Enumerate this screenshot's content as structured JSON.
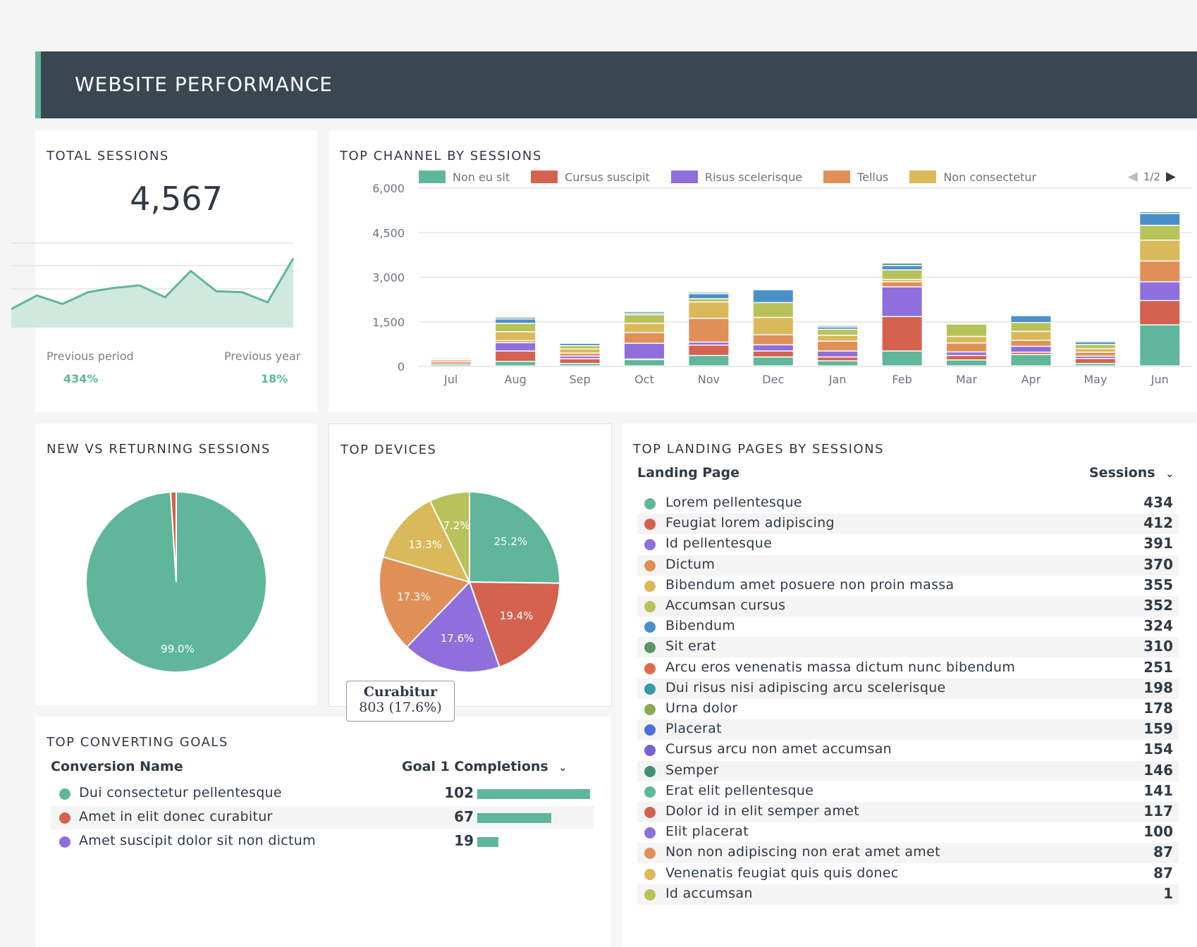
{
  "header": {
    "title": "WEBSITE PERFORMANCE"
  },
  "total_sessions": {
    "title": "TOTAL SESSIONS",
    "value": "4,567",
    "previous_period_label": "Previous period",
    "previous_period_value": "434%",
    "previous_year_label": "Previous year",
    "previous_year_value": "18%",
    "sparkline": [
      22,
      38,
      28,
      42,
      47,
      50,
      36,
      67,
      43,
      42,
      30,
      82
    ]
  },
  "top_channel": {
    "title": "TOP CHANNEL BY SESSIONS",
    "pager": "1/2",
    "legend": [
      {
        "name": "Non eu sit",
        "color": "#5fb69b"
      },
      {
        "name": "Cursus suscipit",
        "color": "#d4624f"
      },
      {
        "name": "Risus scelerisque",
        "color": "#8e6fdb"
      },
      {
        "name": "Tellus",
        "color": "#e08f57"
      },
      {
        "name": "Non consectetur",
        "color": "#d9b95a"
      }
    ]
  },
  "chart_data": [
    {
      "type": "bar",
      "stacked": true,
      "categories": [
        "Jul",
        "Aug",
        "Sep",
        "Oct",
        "Nov",
        "Dec",
        "Jan",
        "Feb",
        "Mar",
        "Apr",
        "May",
        "Jun"
      ],
      "ylim": [
        0,
        6000
      ],
      "yticks": [
        "6,000",
        "4,500",
        "3,000",
        "1,500",
        "0"
      ],
      "ytick_values": [
        6000,
        4500,
        3000,
        1500,
        0
      ],
      "grid": true,
      "legend_position": "top",
      "series": [
        {
          "name": "Non eu sit",
          "color": "#5fb69b",
          "values": [
            60,
            150,
            80,
            210,
            350,
            300,
            170,
            500,
            200,
            380,
            80,
            1380
          ]
        },
        {
          "name": "Cursus suscipit",
          "color": "#d4624f",
          "values": [
            70,
            350,
            160,
            20,
            350,
            200,
            130,
            1160,
            150,
            80,
            170,
            820
          ]
        },
        {
          "name": "Risus scelerisque",
          "color": "#8e6fdb",
          "values": [
            10,
            280,
            90,
            530,
            100,
            210,
            200,
            1000,
            120,
            200,
            80,
            630
          ]
        },
        {
          "name": "Tellus",
          "color": "#e08f57",
          "values": [
            60,
            70,
            100,
            360,
            800,
            340,
            330,
            170,
            300,
            200,
            130,
            700
          ]
        },
        {
          "name": "Non consectetur",
          "color": "#d9b95a",
          "values": [
            40,
            300,
            140,
            310,
            550,
            580,
            200,
            80,
            220,
            300,
            120,
            700
          ]
        },
        {
          "name": "",
          "color": "#b7c25a",
          "values": [
            40,
            280,
            110,
            290,
            110,
            500,
            200,
            320,
            420,
            300,
            140,
            500
          ]
        },
        {
          "name": "",
          "color": "#4a8fca",
          "values": [
            30,
            150,
            80,
            50,
            170,
            430,
            80,
            150,
            30,
            230,
            90,
            400
          ]
        },
        {
          "name": "",
          "color": "#5b9467",
          "values": [
            0,
            60,
            30,
            60,
            50,
            40,
            50,
            80,
            40,
            10,
            40,
            60
          ]
        }
      ]
    },
    {
      "type": "pie",
      "title": "NEW VS RETURNING SESSIONS",
      "slices": [
        {
          "label": "99.0%",
          "value": 99.0,
          "color": "#5fb69b"
        },
        {
          "label": "",
          "value": 1.0,
          "color": "#d4624f"
        }
      ]
    },
    {
      "type": "pie",
      "title": "TOP DEVICES",
      "slices": [
        {
          "label": "25.2%",
          "value": 25.2,
          "color": "#5fb69b"
        },
        {
          "label": "19.4%",
          "value": 19.4,
          "color": "#d4624f"
        },
        {
          "label": "17.6%",
          "value": 17.6,
          "color": "#8e6fdb"
        },
        {
          "label": "17.3%",
          "value": 17.3,
          "color": "#e08f57"
        },
        {
          "label": "13.3%",
          "value": 13.3,
          "color": "#d9b95a"
        },
        {
          "label": "7.2%",
          "value": 7.2,
          "color": "#b7c25a"
        }
      ],
      "tooltip": {
        "title": "Curabitur",
        "value": "803 (17.6%)"
      }
    }
  ],
  "new_vs_returning": {
    "title": "NEW VS RETURNING SESSIONS"
  },
  "top_devices": {
    "title": "TOP DEVICES"
  },
  "landing_pages": {
    "title": "TOP LANDING PAGES BY SESSIONS",
    "col_page": "Landing Page",
    "col_sessions": "Sessions",
    "rows": [
      {
        "label": "Lorem pellentesque",
        "value": "434",
        "color": "#5fb69b"
      },
      {
        "label": "Feugiat lorem adipiscing",
        "value": "412",
        "color": "#d4624f"
      },
      {
        "label": "Id pellentesque",
        "value": "391",
        "color": "#8e6fdb"
      },
      {
        "label": "Dictum",
        "value": "370",
        "color": "#e08f57"
      },
      {
        "label": "Bibendum amet posuere non proin massa",
        "value": "355",
        "color": "#d9b95a"
      },
      {
        "label": "Accumsan cursus",
        "value": "352",
        "color": "#b7c25a"
      },
      {
        "label": "Bibendum",
        "value": "324",
        "color": "#4a8fca"
      },
      {
        "label": "Sit erat",
        "value": "310",
        "color": "#5b9467"
      },
      {
        "label": "Arcu eros venenatis massa dictum nunc bibendum",
        "value": "251",
        "color": "#e06a4f"
      },
      {
        "label": "Dui risus nisi adipiscing arcu scelerisque",
        "value": "198",
        "color": "#3a97a8"
      },
      {
        "label": "Urna dolor",
        "value": "178",
        "color": "#8aac4f"
      },
      {
        "label": "Placerat",
        "value": "159",
        "color": "#4a6fd8"
      },
      {
        "label": "Cursus arcu non amet accumsan",
        "value": "154",
        "color": "#7a5fd6"
      },
      {
        "label": "Semper",
        "value": "146",
        "color": "#3f8f75"
      },
      {
        "label": "Erat elit pellentesque",
        "value": "141",
        "color": "#5fb69b"
      },
      {
        "label": "Dolor id in elit semper amet",
        "value": "117",
        "color": "#d4624f"
      },
      {
        "label": "Elit placerat",
        "value": "100",
        "color": "#8e6fdb"
      },
      {
        "label": "Non non adipiscing non erat amet amet",
        "value": "87",
        "color": "#e08f57"
      },
      {
        "label": "Venenatis feugiat quis quis donec",
        "value": "87",
        "color": "#d9b95a"
      },
      {
        "label": "Id accumsan",
        "value": "1",
        "color": "#b7c25a"
      }
    ]
  },
  "goals": {
    "title": "TOP CONVERTING GOALS",
    "col_name": "Conversion Name",
    "col_value": "Goal 1 Completions",
    "rows": [
      {
        "label": "Dui consectetur pellentesque",
        "value": "102",
        "amount": 102,
        "color": "#5fb69b"
      },
      {
        "label": "Amet in elit donec curabitur",
        "value": "67",
        "amount": 67,
        "color": "#d4624f"
      },
      {
        "label": "Amet suscipit dolor sit non dictum",
        "value": "19",
        "amount": 19,
        "color": "#8e6fdb"
      }
    ]
  }
}
